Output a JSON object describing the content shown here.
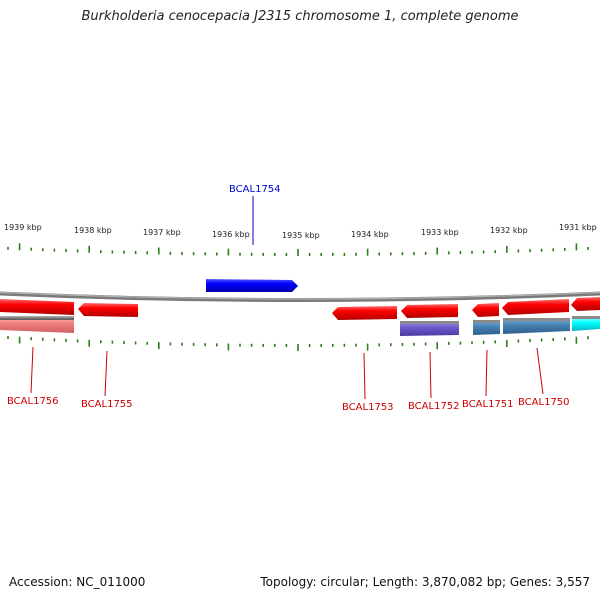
{
  "header": {
    "title": "Burkholderia cenocepacia J2315 chromosome 1, complete genome"
  },
  "footer": {
    "accession": "Accession: NC_011000",
    "summary": "Topology: circular; Length: 3,870,082 bp; Genes: 3,557"
  },
  "scale": {
    "labels": [
      "1939 kbp",
      "1938 kbp",
      "1937 kbp",
      "1936 kbp",
      "1935 kbp",
      "1934 kbp",
      "1933 kbp",
      "1932 kbp",
      "1931 kbp"
    ]
  },
  "genes": [
    {
      "name": "BCAL1754",
      "strand": "+",
      "color": "#0000ff"
    },
    {
      "name": "BCAL1756",
      "strand": "-",
      "color": "#ff0000"
    },
    {
      "name": "BCAL1755",
      "strand": "-",
      "color": "#ff0000"
    },
    {
      "name": "BCAL1753",
      "strand": "-",
      "color": "#ff0000"
    },
    {
      "name": "BCAL1752",
      "strand": "-",
      "color": "#ff0000"
    },
    {
      "name": "BCAL1751",
      "strand": "-",
      "color": "#ff0000"
    },
    {
      "name": "BCAL1750",
      "strand": "-",
      "color": "#ff0000"
    }
  ],
  "colors": {
    "forward_cds": "#0000ff",
    "reverse_cds": "#ff0000",
    "backbone": "#888888",
    "ticks": "#2e7d1e",
    "reverse_label": "#cc0000",
    "forward_label": "#0000cc"
  }
}
